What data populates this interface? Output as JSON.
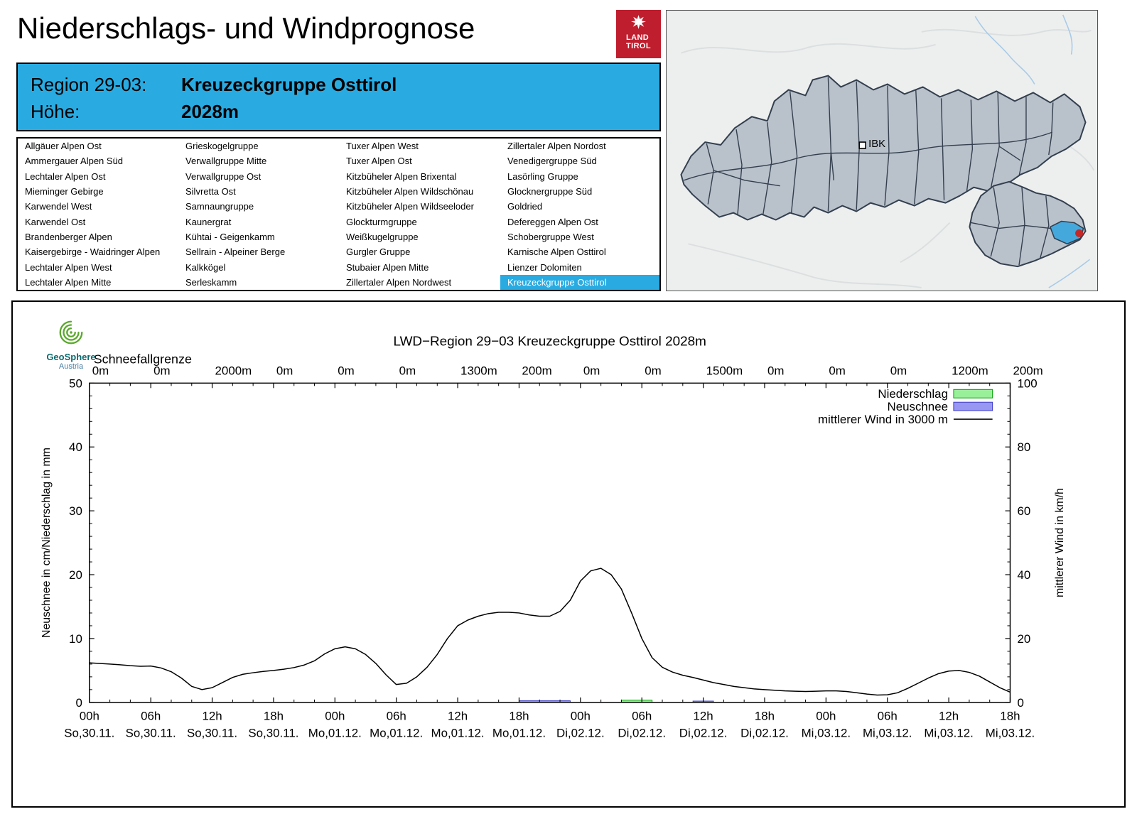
{
  "header": {
    "title": "Niederschlags- und Windprognose",
    "logo": {
      "line1": "LAND",
      "line2": "TIROL",
      "color": "#bf1e2e"
    }
  },
  "region_info": {
    "region_label": "Region 29-03:",
    "region_value": "Kreuzeckgruppe Osttirol",
    "hoehe_label": "Höhe:",
    "hoehe_value": "2028m",
    "accent_color": "#29abe2"
  },
  "region_list": {
    "selected": "Kreuzeckgruppe Osttirol",
    "columns": [
      [
        "Allgäuer Alpen Ost",
        "Ammergauer Alpen Süd",
        "Lechtaler Alpen Ost",
        "Mieminger Gebirge",
        "Karwendel West",
        "Karwendel Ost",
        "Brandenberger Alpen",
        "Kaisergebirge - Waidringer Alpen",
        "Lechtaler Alpen West",
        "Lechtaler Alpen Mitte"
      ],
      [
        "Grieskogelgruppe",
        "Verwallgruppe Mitte",
        "Verwallgruppe Ost",
        "Silvretta Ost",
        "Samnaungruppe",
        "Kaunergrat",
        "Kühtai - Geigenkamm",
        "Sellrain - Alpeiner Berge",
        "Kalkkögel",
        "Serleskamm"
      ],
      [
        "Tuxer Alpen West",
        "Tuxer Alpen Ost",
        "Kitzbüheler Alpen Brixental",
        "Kitzbüheler Alpen Wildschönau",
        "Kitzbüheler Alpen Wildseeloder",
        "Glockturmgruppe",
        "Weißkugelgruppe",
        "Gurgler Gruppe",
        "Stubaier Alpen Mitte",
        "Zillertaler Alpen Nordwest"
      ],
      [
        "Zillertaler Alpen Nordost",
        "Venedigergruppe Süd",
        "Lasörling Gruppe",
        "Glocknergruppe Süd",
        "Goldried",
        "Defereggen Alpen Ost",
        "Schobergruppe West",
        "Karnische Alpen Osttirol",
        "Lienzer Dolomiten",
        "Kreuzeckgruppe Osttirol"
      ]
    ]
  },
  "map": {
    "marker_label": "IBK",
    "selected_region_color": "#45a8dc",
    "marker_dot_color": "#c62828"
  },
  "geosphere": {
    "line1": "GeoSphere",
    "line2": "Austria"
  },
  "chart_data": {
    "type": "line",
    "title": "LWD−Region 29−03 Kreuzeckgruppe Osttirol 2028m",
    "snowline_label": "Schneefallgrenze",
    "snowline_values": [
      "0m",
      "0m",
      "2000m",
      "0m",
      "0m",
      "0m",
      "1300m",
      "200m",
      "0m",
      "0m",
      "1500m",
      "0m",
      "0m",
      "0m",
      "1200m",
      "200m"
    ],
    "ylabel_left": "Neuschnee in cm/Niederschlag in mm",
    "ylabel_right": "mittlerer Wind in km/h",
    "grid": false,
    "legend_position": "top-right-inside",
    "y_left": {
      "range": [
        0,
        50
      ],
      "ticks": [
        0,
        10,
        20,
        30,
        40,
        50
      ]
    },
    "y_right": {
      "range": [
        0,
        100
      ],
      "ticks": [
        0,
        20,
        40,
        60,
        80,
        100
      ]
    },
    "x_hours_range": [
      0,
      90
    ],
    "x_ticks": [
      {
        "hour": 0,
        "time": "00h",
        "date": "So,30.11."
      },
      {
        "hour": 6,
        "time": "06h",
        "date": "So,30.11."
      },
      {
        "hour": 12,
        "time": "12h",
        "date": "So,30.11."
      },
      {
        "hour": 18,
        "time": "18h",
        "date": "So,30.11."
      },
      {
        "hour": 24,
        "time": "00h",
        "date": "Mo,01.12."
      },
      {
        "hour": 30,
        "time": "06h",
        "date": "Mo,01.12."
      },
      {
        "hour": 36,
        "time": "12h",
        "date": "Mo,01.12."
      },
      {
        "hour": 42,
        "time": "18h",
        "date": "Mo,01.12."
      },
      {
        "hour": 48,
        "time": "00h",
        "date": "Di,02.12."
      },
      {
        "hour": 54,
        "time": "06h",
        "date": "Di,02.12."
      },
      {
        "hour": 60,
        "time": "12h",
        "date": "Di,02.12."
      },
      {
        "hour": 66,
        "time": "18h",
        "date": "Di,02.12."
      },
      {
        "hour": 72,
        "time": "00h",
        "date": "Mi,03.12."
      },
      {
        "hour": 78,
        "time": "06h",
        "date": "Mi,03.12."
      },
      {
        "hour": 84,
        "time": "12h",
        "date": "Mi,03.12."
      },
      {
        "hour": 90,
        "time": "18h",
        "date": "Mi,03.12."
      }
    ],
    "legend": [
      {
        "label": "Niederschlag",
        "type": "box",
        "fill": "#98f098",
        "stroke": "#00a000"
      },
      {
        "label": "Neuschnee",
        "type": "box",
        "fill": "#9898f2",
        "stroke": "#3838c8"
      },
      {
        "label": "mittlerer Wind in 3000 m",
        "type": "line",
        "stroke": "#000000"
      }
    ],
    "series": {
      "wind_3000m_kmh": {
        "axis": "right",
        "points": [
          [
            0,
            12.4
          ],
          [
            1,
            12.2
          ],
          [
            2,
            12.0
          ],
          [
            3,
            11.8
          ],
          [
            4,
            11.5
          ],
          [
            5,
            11.3
          ],
          [
            6,
            11.4
          ],
          [
            7,
            10.8
          ],
          [
            8,
            9.6
          ],
          [
            9,
            7.6
          ],
          [
            10,
            5.0
          ],
          [
            11,
            4.0
          ],
          [
            12,
            4.6
          ],
          [
            13,
            6.2
          ],
          [
            14,
            7.8
          ],
          [
            15,
            8.8
          ],
          [
            16,
            9.3
          ],
          [
            17,
            9.7
          ],
          [
            18,
            10.0
          ],
          [
            19,
            10.4
          ],
          [
            20,
            10.9
          ],
          [
            21,
            11.7
          ],
          [
            22,
            13.0
          ],
          [
            23,
            15.2
          ],
          [
            24,
            16.8
          ],
          [
            25,
            17.4
          ],
          [
            26,
            16.8
          ],
          [
            27,
            15.0
          ],
          [
            28,
            12.2
          ],
          [
            29,
            8.6
          ],
          [
            30,
            5.6
          ],
          [
            31,
            6.0
          ],
          [
            32,
            8.0
          ],
          [
            33,
            11.0
          ],
          [
            34,
            15.0
          ],
          [
            35,
            20.0
          ],
          [
            36,
            24.0
          ],
          [
            37,
            25.8
          ],
          [
            38,
            27.0
          ],
          [
            39,
            27.8
          ],
          [
            40,
            28.2
          ],
          [
            41,
            28.2
          ],
          [
            42,
            28.0
          ],
          [
            43,
            27.4
          ],
          [
            44,
            27.0
          ],
          [
            45,
            27.0
          ],
          [
            46,
            28.5
          ],
          [
            47,
            32.0
          ],
          [
            48,
            38.0
          ],
          [
            49,
            41.2
          ],
          [
            50,
            42.0
          ],
          [
            51,
            40.0
          ],
          [
            52,
            35.5
          ],
          [
            53,
            28.0
          ],
          [
            54,
            20.0
          ],
          [
            55,
            14.0
          ],
          [
            56,
            11.0
          ],
          [
            57,
            9.5
          ],
          [
            58,
            8.5
          ],
          [
            59,
            7.8
          ],
          [
            60,
            7.0
          ],
          [
            61,
            6.2
          ],
          [
            62,
            5.6
          ],
          [
            63,
            5.0
          ],
          [
            64,
            4.6
          ],
          [
            65,
            4.2
          ],
          [
            66,
            4.0
          ],
          [
            67,
            3.8
          ],
          [
            68,
            3.6
          ],
          [
            69,
            3.5
          ],
          [
            70,
            3.4
          ],
          [
            71,
            3.5
          ],
          [
            72,
            3.6
          ],
          [
            73,
            3.6
          ],
          [
            74,
            3.4
          ],
          [
            75,
            3.0
          ],
          [
            76,
            2.6
          ],
          [
            77,
            2.3
          ],
          [
            78,
            2.4
          ],
          [
            79,
            3.0
          ],
          [
            80,
            4.4
          ],
          [
            81,
            6.0
          ],
          [
            82,
            7.6
          ],
          [
            83,
            9.0
          ],
          [
            84,
            9.8
          ],
          [
            85,
            10.0
          ],
          [
            86,
            9.4
          ],
          [
            87,
            8.2
          ],
          [
            88,
            6.4
          ],
          [
            89,
            4.6
          ],
          [
            90,
            3.2
          ]
        ]
      },
      "niederschlag_mm": {
        "axis": "left",
        "bars": [
          {
            "from_hour": 52,
            "to_hour": 55,
            "value": 0.35
          }
        ]
      },
      "neuschnee_cm": {
        "axis": "left",
        "bars": [
          {
            "from_hour": 42,
            "to_hour": 47,
            "value": 0.25
          },
          {
            "from_hour": 59,
            "to_hour": 61,
            "value": 0.2
          }
        ]
      }
    }
  }
}
